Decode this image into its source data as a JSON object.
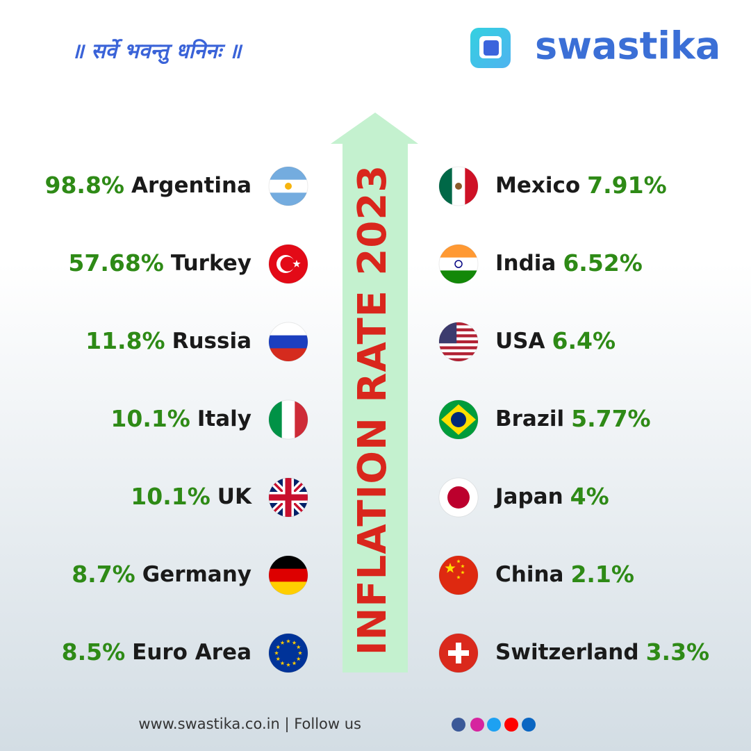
{
  "header": {
    "tagline": "॥ सर्वे भवन्तु धनिनः ॥",
    "brand": "swastika"
  },
  "title": "INFLATION RATE 2023",
  "left": [
    {
      "rate": "98.8%",
      "country": "Argentina"
    },
    {
      "rate": "57.68%",
      "country": "Turkey"
    },
    {
      "rate": "11.8%",
      "country": "Russia"
    },
    {
      "rate": "10.1%",
      "country": "Italy"
    },
    {
      "rate": "10.1%",
      "country": "UK"
    },
    {
      "rate": "8.7%",
      "country": "Germany"
    },
    {
      "rate": "8.5%",
      "country": "Euro Area"
    }
  ],
  "right": [
    {
      "country": "Mexico",
      "rate": "7.91%"
    },
    {
      "country": "India",
      "rate": "6.52%"
    },
    {
      "country": "USA",
      "rate": "6.4%"
    },
    {
      "country": "Brazil",
      "rate": "5.77%"
    },
    {
      "country": "Japan",
      "rate": "4%"
    },
    {
      "country": "China",
      "rate": "2.1%"
    },
    {
      "country": "Switzerland",
      "rate": "3.3%"
    }
  ],
  "footer": "www.swastika.co.in | Follow us"
}
